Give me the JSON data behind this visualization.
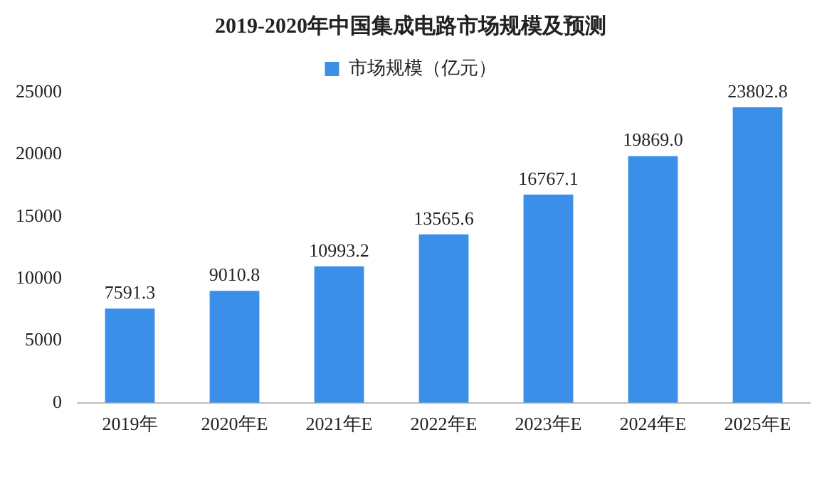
{
  "chart_data": {
    "type": "bar",
    "title": "2019-2020年中国集成电路市场规模及预测",
    "categories": [
      "2019年",
      "2020年E",
      "2021年E",
      "2022年E",
      "2023年E",
      "2024年E",
      "2025年E"
    ],
    "series": [
      {
        "name": "市场规模（亿元）",
        "color": "#3b8fe8",
        "values": [
          7591.3,
          9010.8,
          10993.2,
          13565.6,
          16767.1,
          19869.0,
          23802.8
        ]
      }
    ],
    "value_labels": [
      "7591.3",
      "9010.8",
      "10993.2",
      "13565.6",
      "16767.1",
      "19869.0",
      "23802.8"
    ],
    "ylim": [
      0,
      25000
    ],
    "yticks": [
      0,
      5000,
      10000,
      15000,
      20000,
      25000
    ],
    "grid": false,
    "legend": "top"
  }
}
